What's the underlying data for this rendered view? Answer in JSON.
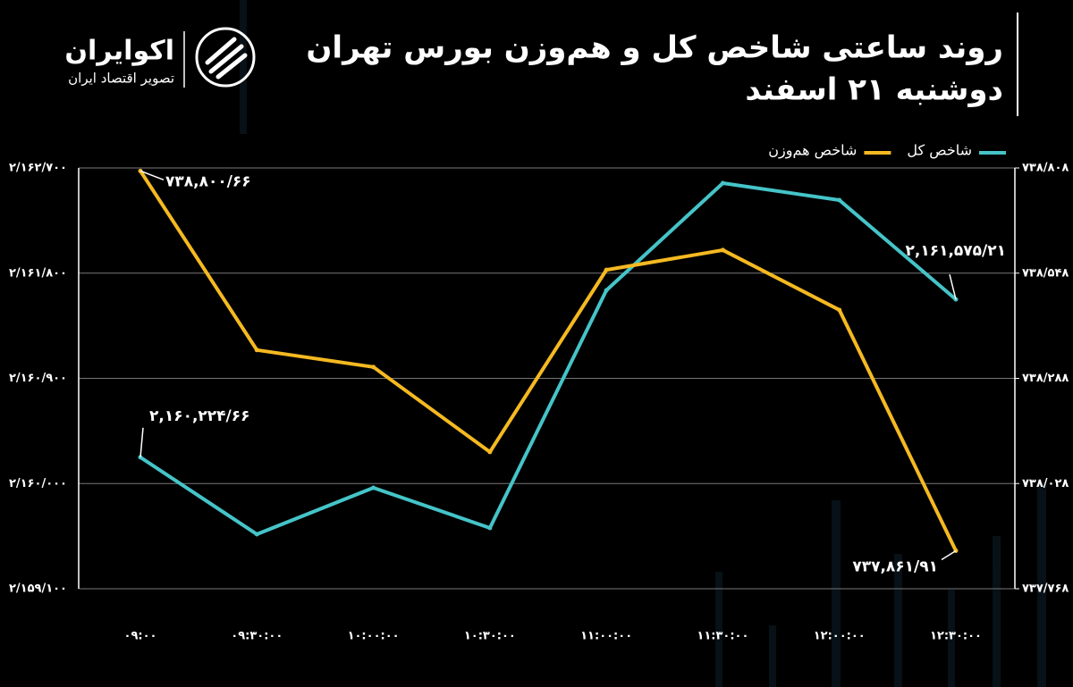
{
  "brand": {
    "name": "اکوایران",
    "tagline": "تصویر اقتصاد ایران"
  },
  "chart_data": {
    "type": "line",
    "title": "روند ساعتی شاخص کل و هم‌وزن بورس تهران",
    "subtitle": "دوشنبه ۲۱ اسفند",
    "categories": [
      "۰۹:۰۰",
      "۰۹:۳۰:۰۰",
      "۱۰:۰۰:۰۰",
      "۱۰:۳۰:۰۰",
      "۱۱:۰۰:۰۰",
      "۱۱:۳۰:۰۰",
      "۱۲:۰۰:۰۰",
      "۱۲:۳۰:۰۰"
    ],
    "series": [
      {
        "name": "شاخص کل",
        "color": "#45c4c8",
        "values": [
          2160224.66,
          2159566,
          2159964,
          2159620,
          2161653,
          2162570,
          2162425,
          2161575.21
        ],
        "value_labels": [
          "۲,۱۶۰,۲۲۴/۶۶",
          null,
          null,
          null,
          null,
          null,
          null,
          "۲,۱۶۱,۵۷۵/۲۱"
        ]
      },
      {
        "name": "شاخص هم‌وزن",
        "color": "#f5b921",
        "axis": "y2",
        "values": [
          738800.66,
          738358,
          738316,
          738106,
          738556,
          738605,
          738457,
          737861.91
        ],
        "value_labels": [
          "۷۳۸,۸۰۰/۶۶",
          null,
          null,
          null,
          null,
          null,
          null,
          "۷۳۷,۸۶۱/۹۱"
        ]
      }
    ],
    "ylim": [
      2159100,
      2162700
    ],
    "yticks": [
      {
        "value": 2159100,
        "label": "۲/۱۵۹/۱۰۰"
      },
      {
        "value": 2160000,
        "label": "۲/۱۶۰/۰۰۰"
      },
      {
        "value": 2160900,
        "label": "۲/۱۶۰/۹۰۰"
      },
      {
        "value": 2161800,
        "label": "۲/۱۶۱/۸۰۰"
      },
      {
        "value": 2162700,
        "label": "۲/۱۶۲/۷۰۰"
      }
    ],
    "y2lim": [
      737768,
      738808
    ],
    "y2ticks": [
      {
        "value": 737768,
        "label": "۷۳۷/۷۶۸"
      },
      {
        "value": 738028,
        "label": "۷۳۸/۰۲۸"
      },
      {
        "value": 738288,
        "label": "۷۳۸/۲۸۸"
      },
      {
        "value": 738548,
        "label": "۷۳۸/۵۴۸"
      },
      {
        "value": 738808,
        "label": "۷۳۸/۸۰۸"
      }
    ],
    "grid": true
  }
}
